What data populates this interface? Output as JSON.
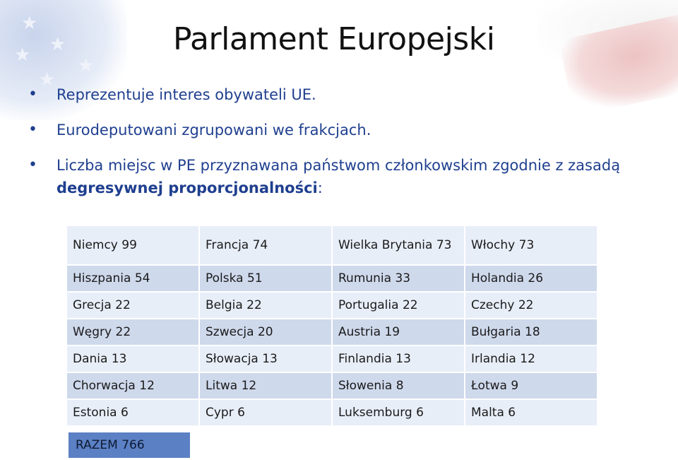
{
  "title": "Parlament Europejski",
  "bullets": {
    "b1": "Reprezentuje interes obywateli UE.",
    "b2": "Eurodeputowani zgrupowani we frakcjach.",
    "b3_pre": "Liczba miejsc w PE przyznawana państwom członkowskim zgodnie z zasadą ",
    "b3_bold": "degresywnej proporcjonalności",
    "b3_post": ":"
  },
  "table": {
    "rows": [
      [
        "Niemcy  99",
        "Francja 74",
        "Wielka Brytania 73",
        "Włochy  73"
      ],
      [
        "Hiszpania 54",
        "Polska 51",
        "Rumunia 33",
        "Holandia 26"
      ],
      [
        "Grecja 22",
        "Belgia 22",
        "Portugalia 22",
        "Czechy 22"
      ],
      [
        "Węgry 22",
        "Szwecja 20",
        "Austria 19",
        "Bułgaria 18"
      ],
      [
        "Dania 13",
        "Słowacja 13",
        "Finlandia 13",
        "Irlandia 12"
      ],
      [
        "Chorwacja 12",
        "Litwa 12",
        "Słowenia 8",
        "Łotwa 9"
      ],
      [
        "Estonia 6",
        "Cypr 6",
        "Luksemburg 6",
        "Malta 6"
      ]
    ],
    "total": "RAZEM 766"
  }
}
